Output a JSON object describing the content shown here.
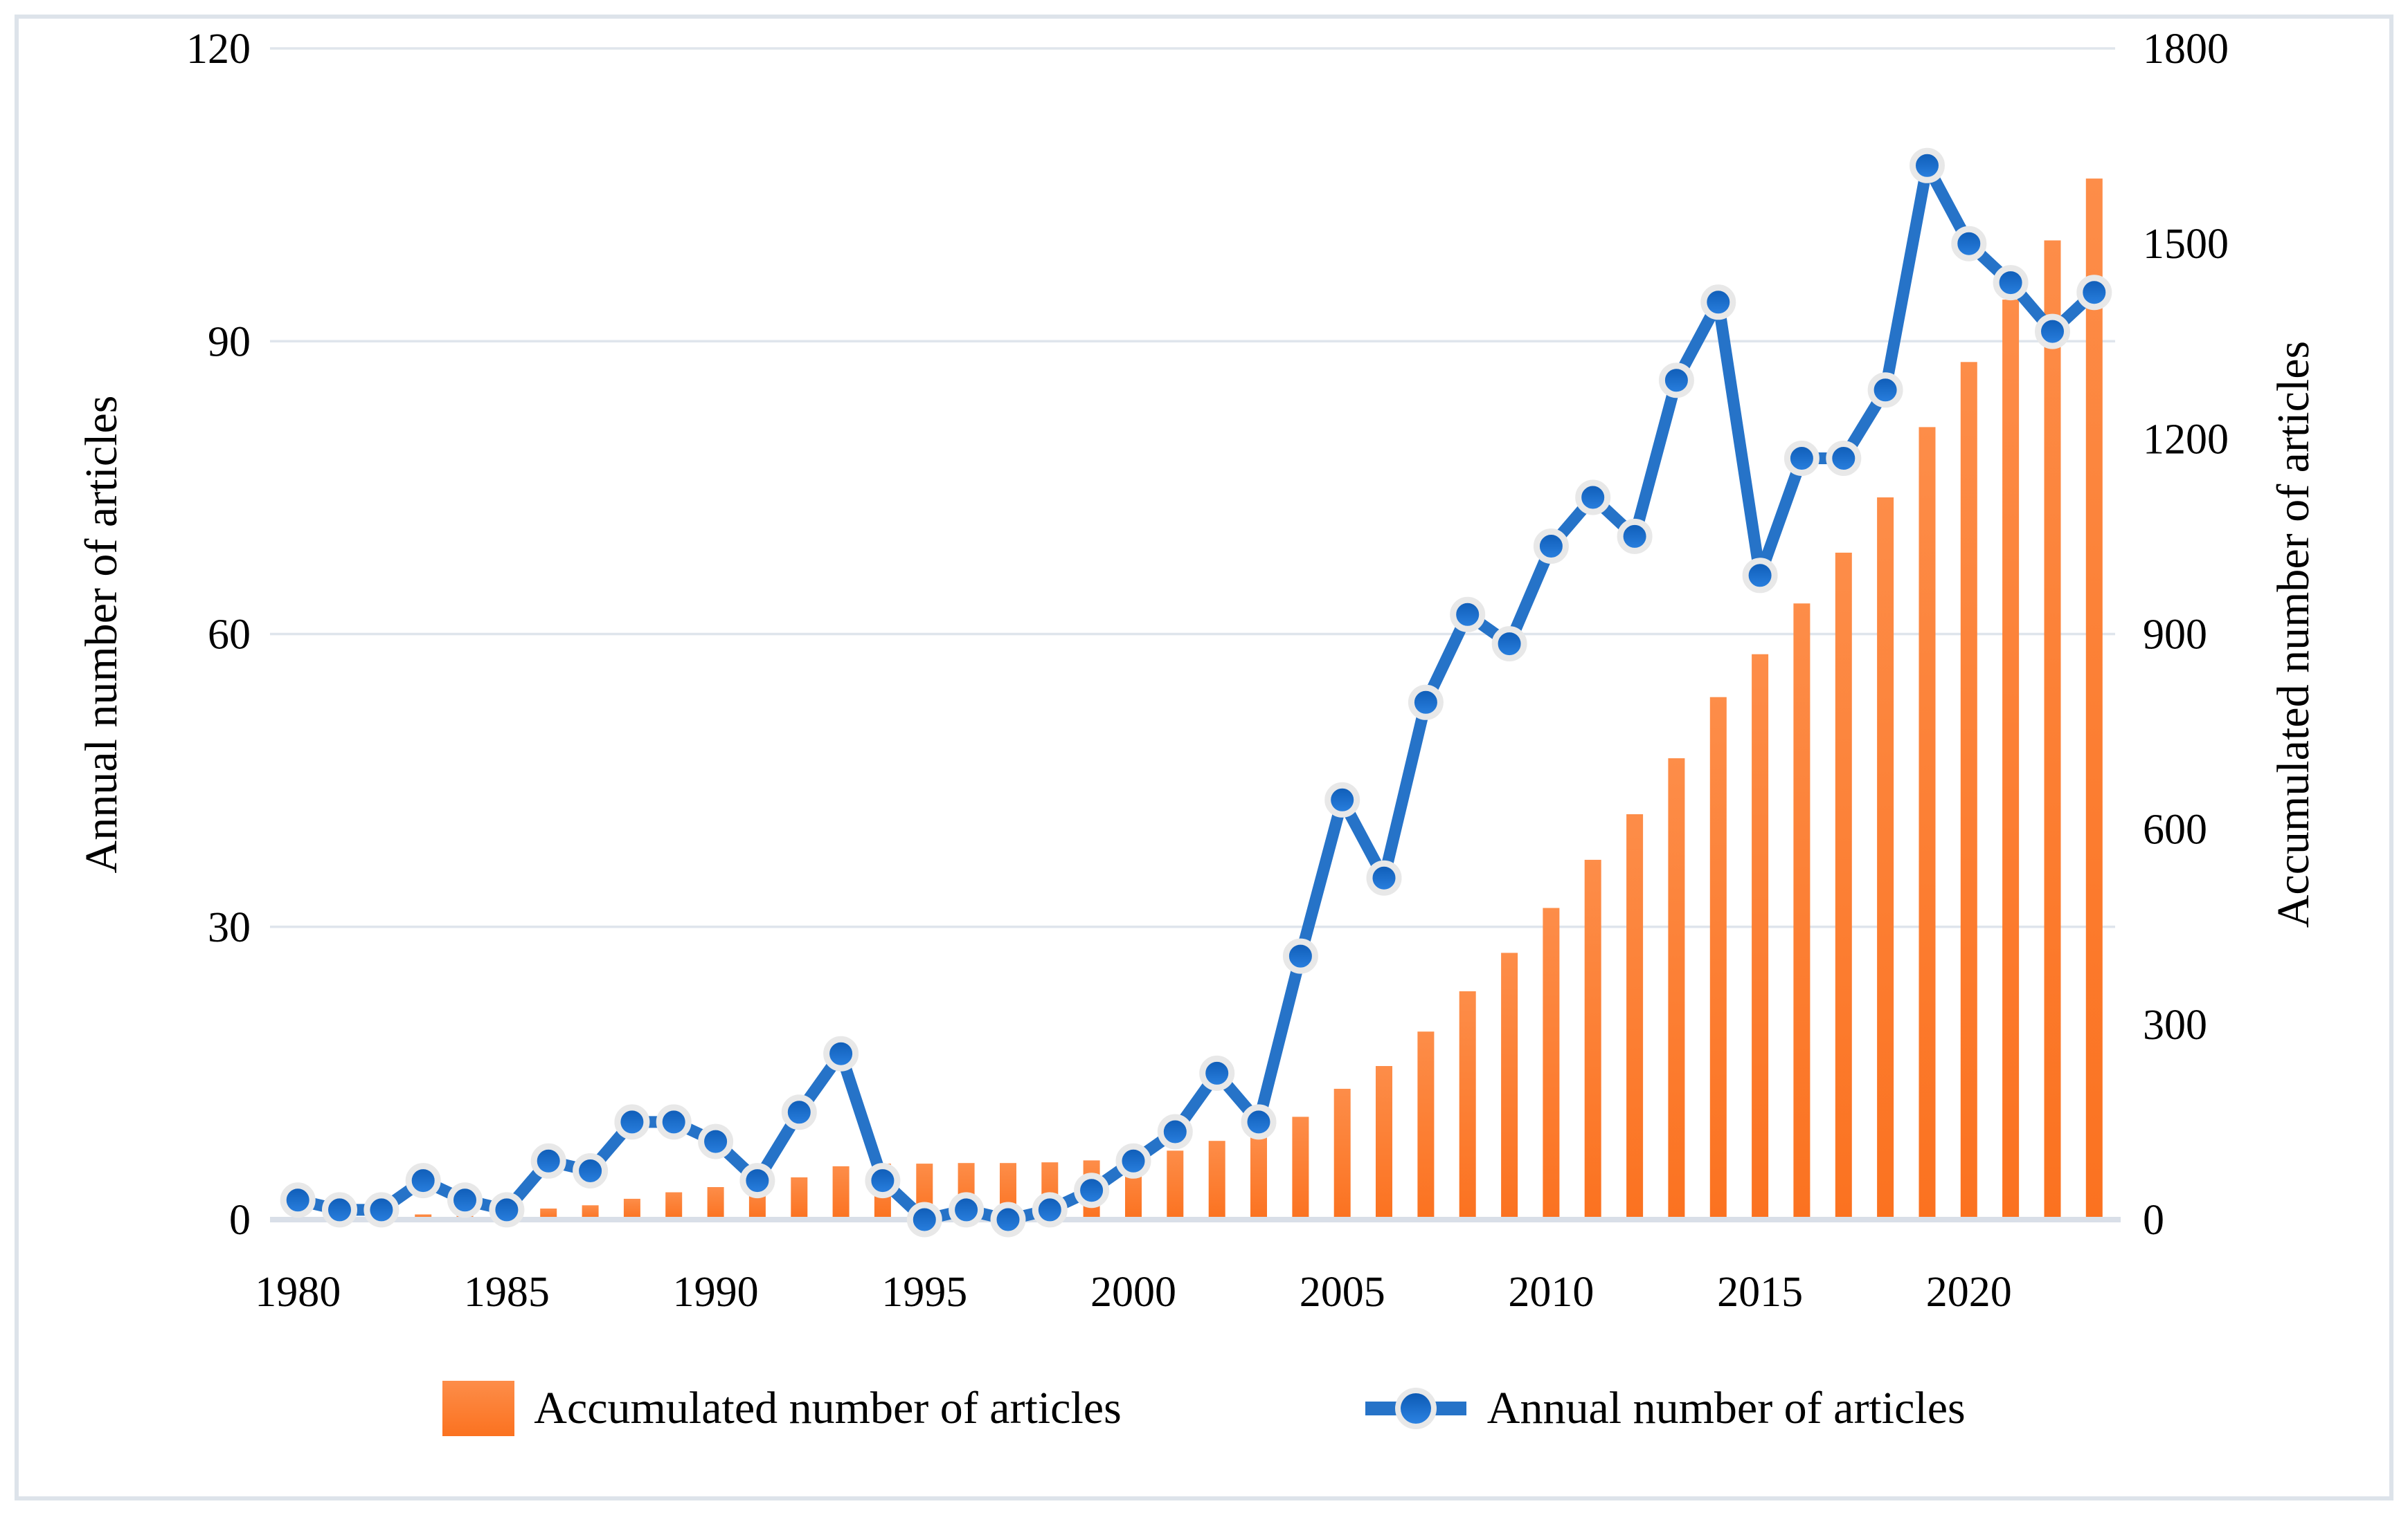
{
  "figure": {
    "border_color": "#dde3ea",
    "background": "#ffffff"
  },
  "colors": {
    "bar_top": "#fd8d49",
    "bar_bottom": "#fb7220",
    "line": "#2673c8",
    "marker_top": "#0d5ab4",
    "marker_bottom": "#2b82e2",
    "marker_halo": "#e8e8e8",
    "gridline": "#dfe5ec",
    "axis_line": "#d9dfe8",
    "text": "#000000"
  },
  "chart_data": {
    "type": "combo-bar-line",
    "x": [
      1980,
      1981,
      1982,
      1983,
      1984,
      1985,
      1986,
      1987,
      1988,
      1989,
      1990,
      1991,
      1992,
      1993,
      1994,
      1995,
      1996,
      1997,
      1998,
      1999,
      2000,
      2001,
      2002,
      2003,
      2004,
      2005,
      2006,
      2007,
      2008,
      2009,
      2010,
      2011,
      2012,
      2013,
      2014,
      2015,
      2016,
      2017,
      2018,
      2019,
      2020,
      2021,
      2022,
      2023
    ],
    "series": [
      {
        "name": "Accumulated number of articles",
        "type": "bar",
        "axis": "right",
        "values": [
          2,
          3,
          4,
          8,
          10,
          11,
          17,
          22,
          32,
          42,
          50,
          54,
          65,
          82,
          86,
          86,
          87,
          87,
          88,
          91,
          97,
          106,
          121,
          131,
          158,
          201,
          236,
          289,
          351,
          410,
          479,
          553,
          623,
          709,
          803,
          869,
          947,
          1025,
          1110,
          1218,
          1318,
          1414,
          1505,
          1600
        ]
      },
      {
        "name": "Annual number of articles",
        "type": "line",
        "axis": "left",
        "values": [
          2,
          1,
          1,
          4,
          2,
          1,
          6,
          5,
          10,
          10,
          8,
          4,
          11,
          17,
          4,
          0,
          1,
          0,
          1,
          3,
          6,
          9,
          15,
          10,
          27,
          43,
          35,
          53,
          62,
          59,
          69,
          74,
          70,
          86,
          94,
          66,
          78,
          78,
          85,
          108,
          100,
          96,
          91,
          95
        ]
      }
    ],
    "left_axis": {
      "title": "Annual number of articles",
      "ticks": [
        0,
        30,
        60,
        90,
        120
      ],
      "range": [
        0,
        120
      ]
    },
    "right_axis": {
      "title": "Accumulated number of articles",
      "ticks": [
        0,
        300,
        600,
        900,
        1200,
        1500,
        1800
      ],
      "range": [
        0,
        1800
      ]
    },
    "x_axis": {
      "tick_years": [
        1980,
        1985,
        1990,
        1995,
        2000,
        2005,
        2010,
        2015,
        2020
      ]
    },
    "grid": true,
    "legend_position": "bottom"
  }
}
